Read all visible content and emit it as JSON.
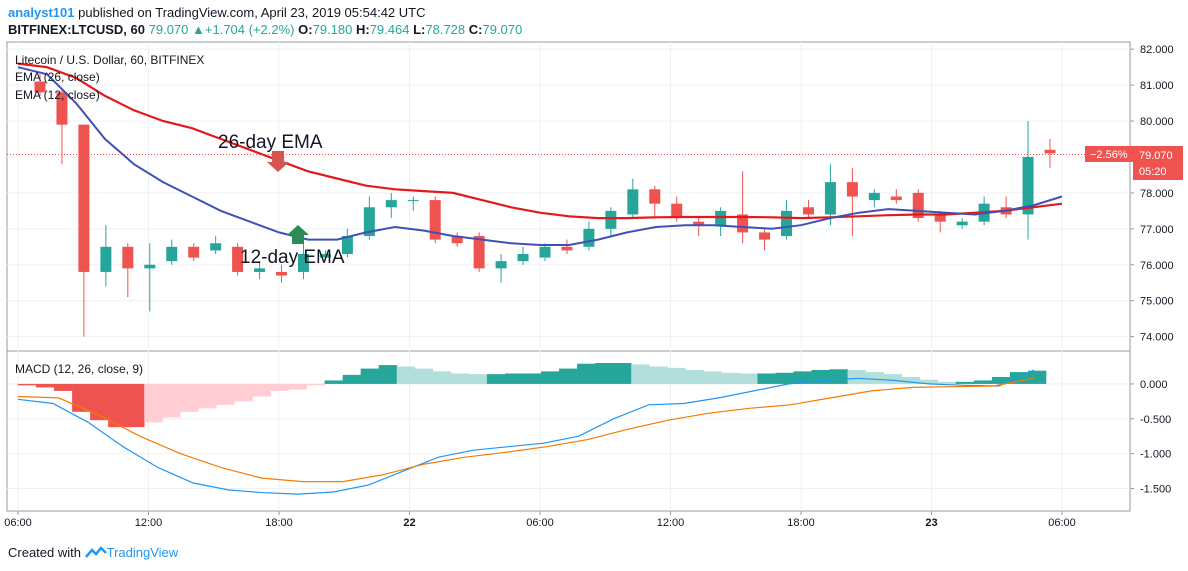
{
  "header": {
    "username": "analyst101",
    "published_text": "published on TradingView.com, April 23, 2019 05:54:42 UTC",
    "symbol": "BITFINEX:LTCUSD, 60",
    "last": "79.070",
    "change": "+1.704 (+2.2%)",
    "o_label": "O:",
    "o_value": "79.180",
    "h_label": "H:",
    "h_value": "79.464",
    "l_label": "L:",
    "l_value": "78.728",
    "c_label": "C:",
    "c_value": "79.070"
  },
  "footer": {
    "created_with": "Created with",
    "brand": "TradingView"
  },
  "chart_data": [
    {
      "type": "candlestick",
      "title": "Litecoin / U.S. Dollar, 60, BITFINEX",
      "legend": [
        "EMA (26, close)",
        "EMA (12, close)"
      ],
      "ylim": [
        73.6,
        82.2
      ],
      "y_ticks": [
        "82.000",
        "81.000",
        "80.000",
        "79.000",
        "78.000",
        "77.000",
        "76.000",
        "75.000",
        "74.000"
      ],
      "x_ticks": [
        "06:00",
        "12:00",
        "18:00",
        "22",
        "06:00",
        "12:00",
        "18:00",
        "23",
        "06:00"
      ],
      "last_price_label": "79.070",
      "change_pct_label": "−2.56%",
      "countdown_label": "05:20",
      "colors": {
        "up": "#26a69a",
        "down": "#ef5350",
        "ema26": "#e31a1c",
        "ema12": "#3f51b5"
      },
      "candles": [
        {
          "o": 81.1,
          "h": 81.3,
          "l": 80.7,
          "c": 80.8
        },
        {
          "o": 80.8,
          "h": 80.9,
          "l": 78.8,
          "c": 79.9
        },
        {
          "o": 79.9,
          "h": 79.9,
          "l": 74.0,
          "c": 75.8
        },
        {
          "o": 75.8,
          "h": 77.1,
          "l": 75.4,
          "c": 76.5
        },
        {
          "o": 76.5,
          "h": 76.6,
          "l": 75.1,
          "c": 75.9
        },
        {
          "o": 75.9,
          "h": 76.6,
          "l": 74.7,
          "c": 76.0
        },
        {
          "o": 76.1,
          "h": 76.7,
          "l": 76.0,
          "c": 76.5
        },
        {
          "o": 76.5,
          "h": 76.6,
          "l": 76.1,
          "c": 76.2
        },
        {
          "o": 76.4,
          "h": 76.8,
          "l": 76.3,
          "c": 76.6
        },
        {
          "o": 76.5,
          "h": 76.6,
          "l": 75.7,
          "c": 75.8
        },
        {
          "o": 75.8,
          "h": 76.1,
          "l": 75.6,
          "c": 75.9
        },
        {
          "o": 75.8,
          "h": 76.0,
          "l": 75.5,
          "c": 75.7
        },
        {
          "o": 75.8,
          "h": 76.9,
          "l": 75.6,
          "c": 76.3
        },
        {
          "o": 76.2,
          "h": 76.4,
          "l": 76.1,
          "c": 76.3
        },
        {
          "o": 76.3,
          "h": 77.0,
          "l": 76.2,
          "c": 76.8
        },
        {
          "o": 76.8,
          "h": 77.9,
          "l": 76.7,
          "c": 77.6
        },
        {
          "o": 77.6,
          "h": 78.0,
          "l": 77.3,
          "c": 77.8
        },
        {
          "o": 77.8,
          "h": 77.9,
          "l": 77.5,
          "c": 77.8
        },
        {
          "o": 77.8,
          "h": 77.9,
          "l": 76.6,
          "c": 76.7
        },
        {
          "o": 76.8,
          "h": 76.9,
          "l": 76.5,
          "c": 76.6
        },
        {
          "o": 76.8,
          "h": 76.9,
          "l": 75.8,
          "c": 75.9
        },
        {
          "o": 75.9,
          "h": 76.3,
          "l": 75.5,
          "c": 76.1
        },
        {
          "o": 76.1,
          "h": 76.5,
          "l": 76.0,
          "c": 76.3
        },
        {
          "o": 76.2,
          "h": 76.6,
          "l": 76.1,
          "c": 76.5
        },
        {
          "o": 76.5,
          "h": 76.7,
          "l": 76.3,
          "c": 76.4
        },
        {
          "o": 76.5,
          "h": 77.2,
          "l": 76.4,
          "c": 77.0
        },
        {
          "o": 77.0,
          "h": 77.6,
          "l": 76.8,
          "c": 77.5
        },
        {
          "o": 77.4,
          "h": 78.4,
          "l": 77.3,
          "c": 78.1
        },
        {
          "o": 78.1,
          "h": 78.2,
          "l": 77.3,
          "c": 77.7
        },
        {
          "o": 77.7,
          "h": 77.9,
          "l": 77.2,
          "c": 77.3
        },
        {
          "o": 77.2,
          "h": 77.3,
          "l": 76.8,
          "c": 77.1
        },
        {
          "o": 77.1,
          "h": 77.6,
          "l": 76.8,
          "c": 77.5
        },
        {
          "o": 77.4,
          "h": 78.6,
          "l": 76.6,
          "c": 76.9
        },
        {
          "o": 76.9,
          "h": 77.0,
          "l": 76.4,
          "c": 76.7
        },
        {
          "o": 76.8,
          "h": 77.8,
          "l": 76.7,
          "c": 77.5
        },
        {
          "o": 77.6,
          "h": 77.8,
          "l": 77.3,
          "c": 77.4
        },
        {
          "o": 77.4,
          "h": 78.8,
          "l": 77.1,
          "c": 78.3
        },
        {
          "o": 78.3,
          "h": 78.7,
          "l": 76.8,
          "c": 77.9
        },
        {
          "o": 77.8,
          "h": 78.1,
          "l": 77.6,
          "c": 78.0
        },
        {
          "o": 77.9,
          "h": 78.1,
          "l": 77.7,
          "c": 77.8
        },
        {
          "o": 78.0,
          "h": 78.1,
          "l": 77.2,
          "c": 77.3
        },
        {
          "o": 77.4,
          "h": 77.5,
          "l": 76.9,
          "c": 77.2
        },
        {
          "o": 77.1,
          "h": 77.3,
          "l": 77.0,
          "c": 77.2
        },
        {
          "o": 77.2,
          "h": 77.9,
          "l": 77.1,
          "c": 77.7
        },
        {
          "o": 77.6,
          "h": 77.9,
          "l": 77.3,
          "c": 77.4
        },
        {
          "o": 77.4,
          "h": 80.0,
          "l": 76.7,
          "c": 79.0
        },
        {
          "o": 79.2,
          "h": 79.5,
          "l": 78.7,
          "c": 79.1
        }
      ],
      "ema26": [
        81.6,
        81.5,
        81.2,
        80.7,
        80.3,
        80.0,
        79.8,
        79.5,
        79.2,
        78.9,
        78.6,
        78.4,
        78.2,
        78.1,
        78.05,
        78.0,
        77.8,
        77.6,
        77.45,
        77.35,
        77.3,
        77.3,
        77.32,
        77.33,
        77.33,
        77.33,
        77.32,
        77.3,
        77.32,
        77.35,
        77.38,
        77.4,
        77.4,
        77.45,
        77.5,
        77.6,
        77.7
      ],
      "ema12": [
        81.5,
        81.3,
        80.5,
        79.5,
        78.8,
        78.3,
        77.9,
        77.5,
        77.2,
        76.9,
        76.7,
        76.7,
        76.9,
        77.05,
        76.95,
        76.8,
        76.7,
        76.6,
        76.55,
        76.55,
        76.7,
        76.9,
        77.05,
        77.1,
        77.1,
        77.05,
        77.0,
        77.1,
        77.3,
        77.45,
        77.55,
        77.5,
        77.45,
        77.4,
        77.5,
        77.65,
        77.9
      ],
      "annotations": [
        "26-day EMA",
        "12-day EMA"
      ]
    },
    {
      "type": "macd",
      "title": "MACD (12, 26, close, 9)",
      "ylim": [
        -1.65,
        0.3
      ],
      "y_ticks": [
        "0.000",
        "-0.500",
        "-1.000",
        "-1.500"
      ],
      "colors": {
        "macd": "#2196f3",
        "signal": "#f57c00",
        "hist_pos_strong": "#26a69a",
        "hist_pos_weak": "#b2dfdb",
        "hist_neg_strong": "#ef5350",
        "hist_neg_weak": "#ffcdd2"
      },
      "histogram": [
        -0.02,
        -0.05,
        -0.1,
        -0.4,
        -0.52,
        -0.62,
        -0.62,
        -0.55,
        -0.48,
        -0.4,
        -0.35,
        -0.3,
        -0.25,
        -0.18,
        -0.1,
        -0.08,
        -0.02,
        0.05,
        0.13,
        0.22,
        0.27,
        0.25,
        0.22,
        0.18,
        0.15,
        0.14,
        0.14,
        0.15,
        0.15,
        0.18,
        0.22,
        0.29,
        0.3,
        0.3,
        0.28,
        0.25,
        0.23,
        0.2,
        0.18,
        0.16,
        0.15,
        0.15,
        0.16,
        0.18,
        0.2,
        0.21,
        0.2,
        0.17,
        0.14,
        0.1,
        0.06,
        0.03,
        0.03,
        0.05,
        0.1,
        0.17,
        0.19
      ],
      "macd": [
        -0.22,
        -0.28,
        -0.55,
        -0.9,
        -1.2,
        -1.42,
        -1.52,
        -1.56,
        -1.58,
        -1.55,
        -1.45,
        -1.25,
        -1.05,
        -0.95,
        -0.9,
        -0.85,
        -0.75,
        -0.5,
        -0.3,
        -0.28,
        -0.2,
        -0.1,
        0.0,
        0.05,
        0.08,
        0.05,
        0.0,
        -0.02,
        -0.03,
        0.2
      ],
      "signal": [
        -0.18,
        -0.2,
        -0.45,
        -0.75,
        -1.0,
        -1.2,
        -1.35,
        -1.4,
        -1.4,
        -1.3,
        -1.15,
        -1.05,
        -0.98,
        -0.9,
        -0.8,
        -0.65,
        -0.52,
        -0.42,
        -0.35,
        -0.3,
        -0.2,
        -0.1,
        -0.05,
        -0.04,
        -0.03,
        0.08
      ]
    }
  ]
}
